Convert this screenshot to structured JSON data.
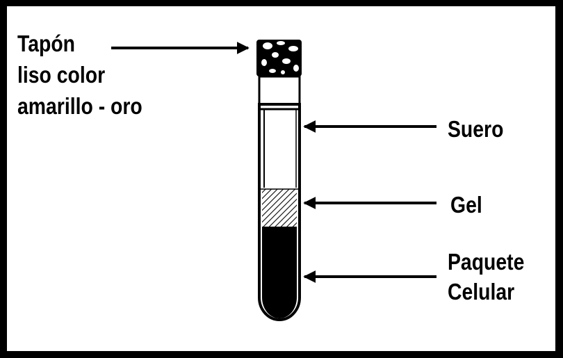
{
  "diagram": {
    "labels": {
      "cap_line1": "Tapón",
      "cap_line2": "liso color",
      "cap_line3": "amarillo - oro",
      "serum": "Suero",
      "gel": "Gel",
      "cells_line1": "Paquete",
      "cells_line2": "Celular"
    },
    "colors": {
      "ink": "#000000",
      "paper": "#ffffff",
      "border": "#000000"
    }
  }
}
